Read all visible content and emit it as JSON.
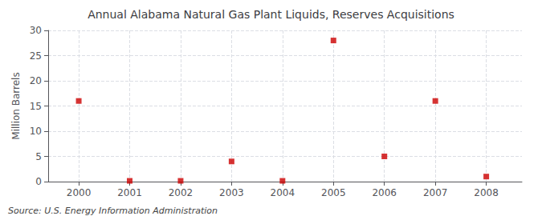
{
  "chart_data": {
    "type": "scatter",
    "title": "Annual Alabama Natural Gas Plant Liquids, Reserves Acquisitions",
    "ylabel": "Million Barrels",
    "annotation": "Source: U.S. Energy Information Administration",
    "x": [
      2000,
      2001,
      2002,
      2003,
      2004,
      2005,
      2006,
      2007,
      2008
    ],
    "values": [
      16,
      0.15,
      0.15,
      4,
      0.15,
      28,
      5,
      16,
      1
    ],
    "color": "#cc0000",
    "marker": "square",
    "xlim": [
      1999.4,
      2008.7
    ],
    "xticks": [
      2000,
      2001,
      2002,
      2003,
      2004,
      2005,
      2006,
      2007,
      2008
    ],
    "ylim": [
      0,
      30
    ],
    "yticks": [
      0,
      5,
      10,
      15,
      20,
      25,
      30
    ],
    "grid": true
  }
}
